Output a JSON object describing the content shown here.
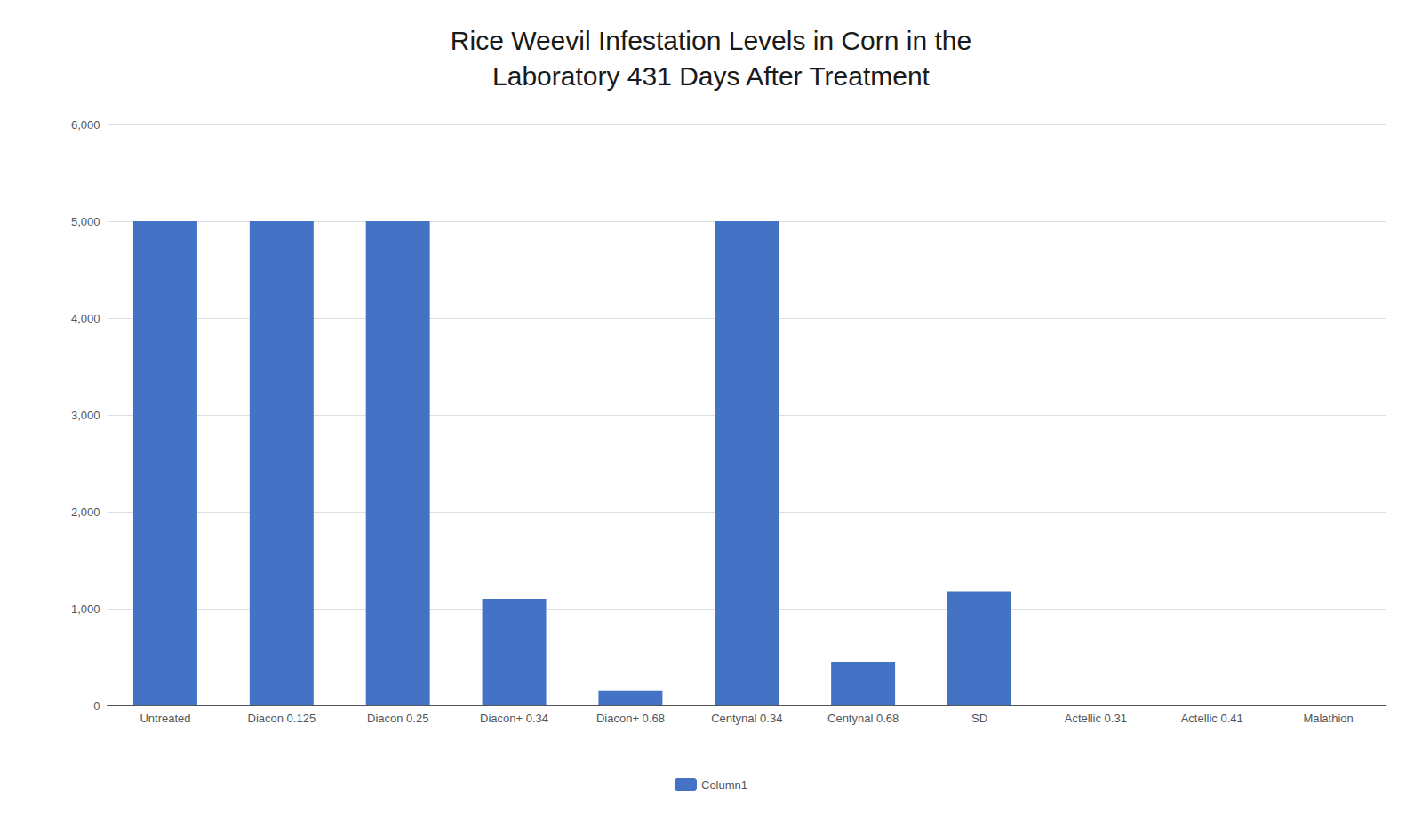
{
  "chart_data": {
    "type": "bar",
    "title": "Rice Weevil Infestation Levels in Corn in the\nLaboratory 431 Days After Treatment",
    "categories": [
      "Untreated",
      "Diacon 0.125",
      "Diacon 0.25",
      "Diacon+ 0.34",
      "Diacon+ 0.68",
      "Centynal 0.34",
      "Centynal 0.68",
      "SD",
      "Actellic 0.31",
      "Actellic 0.41",
      "Malathion"
    ],
    "series": [
      {
        "name": "Column1",
        "color": "#4472C4",
        "values": [
          5000,
          5000,
          5000,
          1100,
          150,
          5000,
          450,
          1180,
          0,
          0,
          0
        ]
      }
    ],
    "ylim": [
      0,
      6000
    ],
    "yticks": [
      0,
      1000,
      2000,
      3000,
      4000,
      5000,
      6000
    ],
    "grid": true,
    "legend": "bottom"
  }
}
